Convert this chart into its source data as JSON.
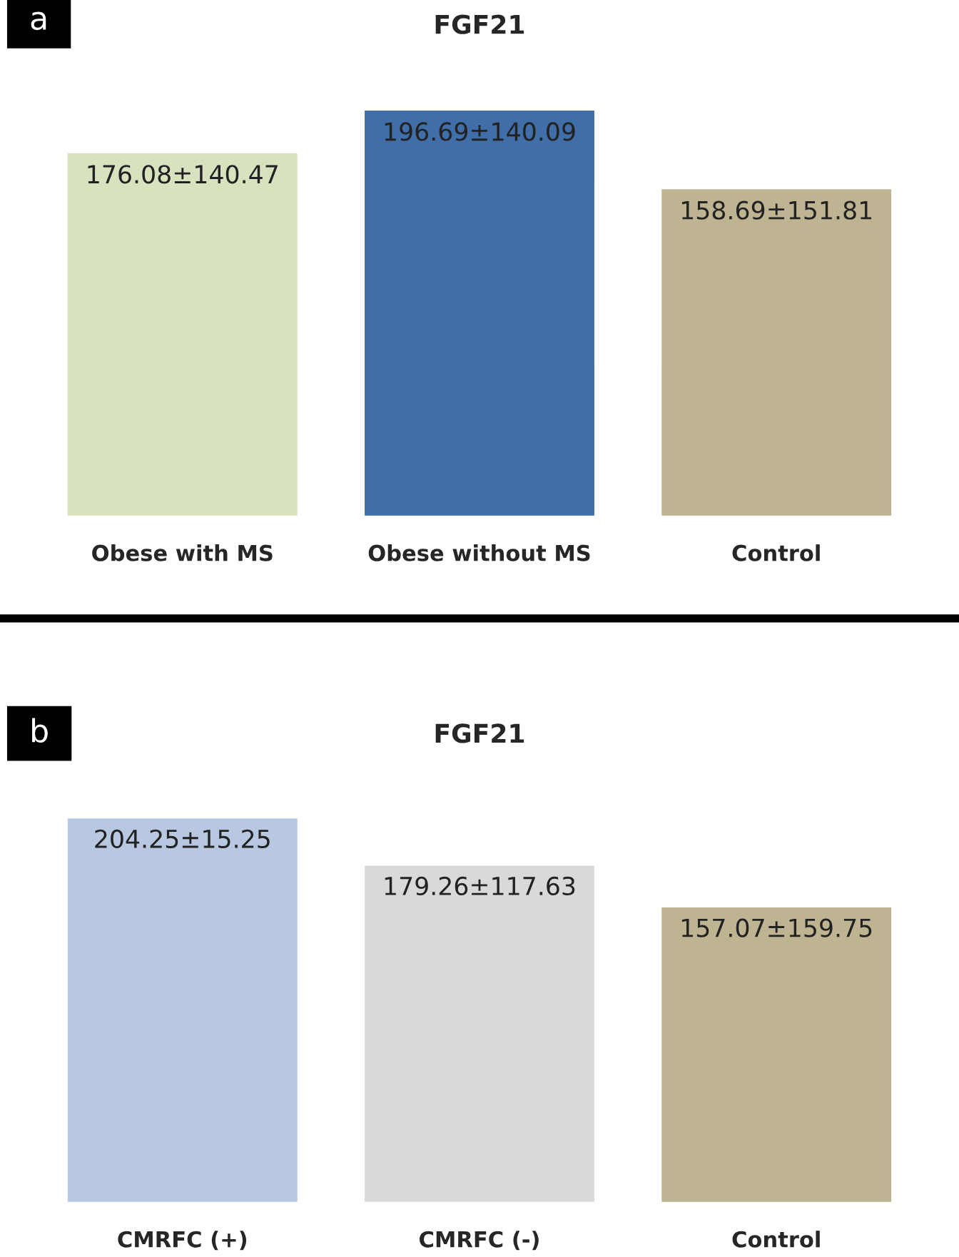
{
  "chart_data": [
    {
      "type": "bar",
      "title": "FGF21",
      "categories": [
        "Obese with MS",
        "Obese without MS",
        "Control"
      ],
      "values": [
        176.08,
        196.69,
        158.69
      ],
      "colors": [
        "#d8e2bf",
        "#3f6ea8",
        "#bfb491"
      ],
      "value_labels": [
        "176.08±140.47",
        "196.69±140.09",
        "158.69±151.81"
      ],
      "annotations": [
        "a"
      ],
      "tick_labels": "x"
    },
    {
      "type": "bar",
      "title": "FGF21",
      "categories": [
        "CMRFC (+)",
        "CMRFC (-)",
        "Control"
      ],
      "values": [
        204.25,
        179.26,
        157.07
      ],
      "colors": [
        "#b8c8e0",
        "#d9d9d9",
        "#bfb491"
      ],
      "value_labels": [
        "204.25±15.25",
        "179.26±117.63",
        "157.07±159.75"
      ],
      "annotations": [
        "b"
      ],
      "tick_labels": "x"
    }
  ]
}
